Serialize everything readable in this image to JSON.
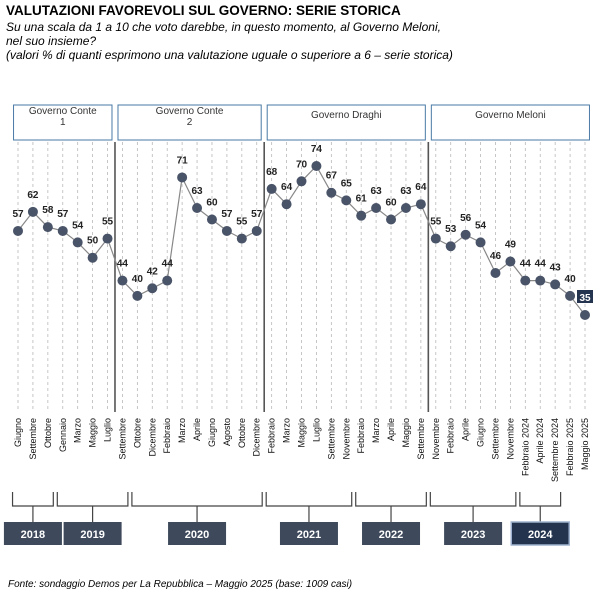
{
  "title": "VALUTAZIONI FAVOREVOLI SUL GOVERNO: SERIE STORICA",
  "subtitle_lines": [
    "Su una scala da 1 a 10 che voto darebbe, in questo momento, al Governo Meloni,",
    "nel suo insieme?",
    "(valori % di quanti esprimono una valutazione uguale o superiore a 6 – serie storica)"
  ],
  "source": "Fonte: sondaggio Demos per La Repubblica – Maggio 2025 (base: 1009 casi)",
  "colors": {
    "point": "#4a5468",
    "line": "#888888",
    "header_border": "#4a7aa6",
    "header_text": "#333333",
    "year_box": "#3e4a5c",
    "year_box_2024": "#24344e"
  },
  "chart_data": {
    "type": "line",
    "ylim": [
      30,
      80
    ],
    "categories": [
      "Giugno",
      "Settembre",
      "Ottobre",
      "Gennaio",
      "Marzo",
      "Maggio",
      "Luglio",
      "Settembre",
      "Ottobre",
      "Dicembre",
      "Febbraio",
      "Marzo",
      "Aprile",
      "Giugno",
      "Agosto",
      "Ottobre",
      "Dicembre",
      "Febbraio",
      "Marzo",
      "Maggio",
      "Luglio",
      "Settembre",
      "Novembre",
      "Febbraio",
      "Marzo",
      "Aprile",
      "Maggio",
      "Settembre",
      "Novembre",
      "Febbraio",
      "Aprile",
      "Giugno",
      "Settembre",
      "Novembre",
      "Febbraio 2024",
      "Aprile 2024",
      "Settembre 2024",
      "Febbraio 2025",
      "Maggio 2025"
    ],
    "series": [
      {
        "values": [
          57,
          62,
          58,
          57,
          54,
          50,
          55,
          44,
          40,
          42,
          44,
          71,
          63,
          60,
          57,
          55,
          57,
          68,
          64,
          70,
          74,
          67,
          65,
          61,
          63,
          60,
          63,
          64,
          55,
          53,
          56,
          54,
          46,
          49,
          44,
          44,
          43,
          40,
          35
        ]
      }
    ],
    "point_labels": [
      "57",
      "62",
      "58",
      "57",
      "54",
      "50",
      "55",
      "44",
      "40",
      "42",
      "44",
      "71",
      "63",
      "60",
      "57",
      "55",
      "57",
      "68",
      "64",
      "70",
      "74",
      "67",
      "65",
      "61",
      "63",
      "60",
      "63",
      "64",
      "55",
      "53",
      "56",
      "54",
      "46",
      "49",
      "44",
      "44",
      "43",
      "40",
      "35"
    ],
    "periods": [
      {
        "label_lines": [
          "Governo Conte",
          "1"
        ],
        "start": 0,
        "end": 6
      },
      {
        "label_lines": [
          "Governo Conte",
          "2"
        ],
        "start": 7,
        "end": 16
      },
      {
        "label_lines": [
          "Governo Draghi"
        ],
        "start": 17,
        "end": 27
      },
      {
        "label_lines": [
          "Governo Meloni"
        ],
        "start": 28,
        "end": 38
      }
    ],
    "years": [
      {
        "label": "2018",
        "start": 0,
        "end": 2
      },
      {
        "label": "2019",
        "start": 3,
        "end": 7
      },
      {
        "label": "2020",
        "start": 8,
        "end": 16
      },
      {
        "label": "2021",
        "start": 17,
        "end": 22
      },
      {
        "label": "2022",
        "start": 23,
        "end": 27
      },
      {
        "label": "2023",
        "start": 28,
        "end": 33
      },
      {
        "label": "2024",
        "start": 34,
        "end": 36
      }
    ]
  }
}
